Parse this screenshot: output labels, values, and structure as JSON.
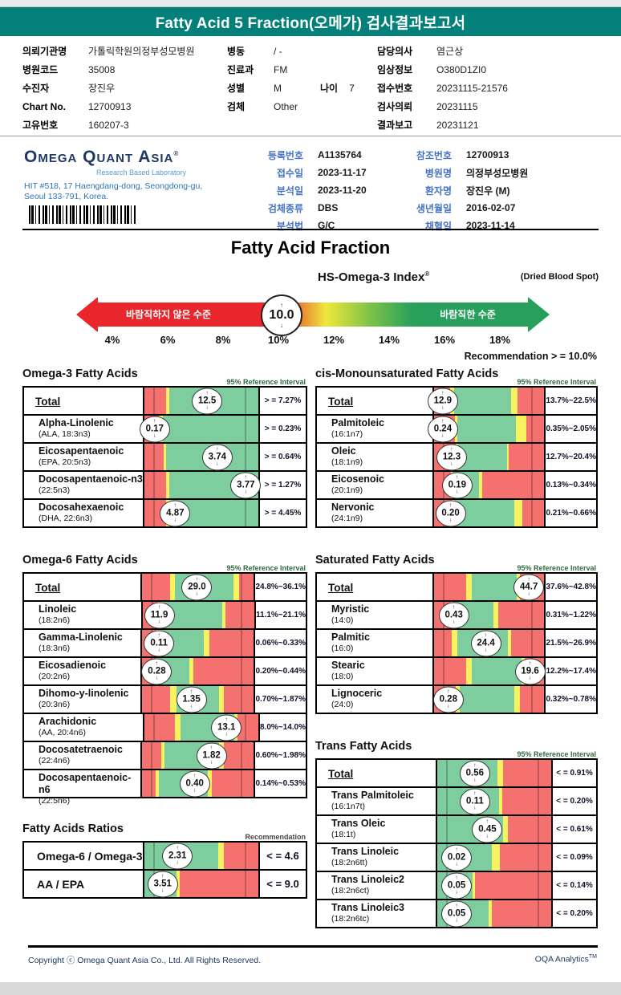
{
  "header": {
    "title": "Fatty Acid 5 Fraction(오메가) 검사결과보고서"
  },
  "colors": {
    "band_teal": "#028079",
    "navy": "#1f3864",
    "label_blue": "#4472c4",
    "address_blue": "#2e74b5",
    "bar_red": "#f4716f",
    "bar_yellow": "#f7f25e",
    "bar_green": "#7dcd9f",
    "arrow_red": "#e8262b",
    "arrow_green": "#28a05b",
    "ref_note_green": "#2e6b3e"
  },
  "patient": {
    "col1": [
      {
        "label": "의뢰기관명",
        "value": "가톨릭학원의정부성모병원"
      },
      {
        "label": "병원코드",
        "value": "35008"
      },
      {
        "label": "수진자",
        "value": "장진우"
      },
      {
        "label": "Chart No.",
        "value": "12700913"
      },
      {
        "label": "고유번호",
        "value": "160207-3"
      }
    ],
    "col2": [
      {
        "label": "병동",
        "value": "/ -"
      },
      {
        "label": "진료과",
        "value": "FM"
      },
      {
        "label": "성별",
        "value": "M",
        "label2": "나이",
        "value2": "7"
      },
      {
        "label": "검체",
        "value": "Other"
      }
    ],
    "col3": [
      {
        "label": "담당의사",
        "value": "염근상"
      },
      {
        "label": "임상정보",
        "value": "O380D1ZI0"
      },
      {
        "label": "접수번호",
        "value": "20231115-21576"
      },
      {
        "label": "검사의뢰",
        "value": "20231115"
      },
      {
        "label": "결과보고",
        "value": "20231121"
      }
    ]
  },
  "lab": {
    "logo": "Omega Quant Asia",
    "logo_sup": "®",
    "logo_sub": "Research Based Laboratory",
    "address_line1": "HIT #518, 17 Haengdang-dong, Seongdong-gu,",
    "address_line2": "Seoul 133-791, Korea.",
    "reg_left": [
      {
        "label": "등록번호",
        "value": "A1135764"
      },
      {
        "label": "접수일",
        "value": "2023-11-17"
      },
      {
        "label": "분석일",
        "value": "2023-11-20"
      },
      {
        "label": "검체종류",
        "value": "DBS"
      },
      {
        "label": "분석법",
        "value": "G/C"
      }
    ],
    "reg_right": [
      {
        "label": "참조번호",
        "value": "12700913"
      },
      {
        "label": "병원명",
        "value": "의정부성모병원"
      },
      {
        "label": "환자명",
        "value": "장진우 (M)"
      },
      {
        "label": "생년월일",
        "value": "2016-02-07"
      },
      {
        "label": "채혈일",
        "value": "2023-11-14"
      }
    ]
  },
  "gauge": {
    "section_title": "Fatty Acid Fraction",
    "index_title": "HS-Omega-3 Index",
    "index_sup": "®",
    "note": "(Dried Blood Spot)",
    "zone_bad": "바람직하지 않은 수준",
    "zone_good": "바람직한 수준",
    "value": "10.0",
    "ticks": [
      "4%",
      "6%",
      "8%",
      "10%",
      "12%",
      "14%",
      "16%",
      "18%"
    ],
    "recommendation": "Recommendation  > =  10.0%"
  },
  "tables": {
    "omega3": {
      "title": "Omega-3 Fatty Acids",
      "note": "95% Reference Interval",
      "rows": [
        {
          "name": "Total",
          "total": true,
          "value": "12.5",
          "ref": "> = 7.27%",
          "marker": 55,
          "segs": [
            [
              "r",
              19
            ],
            [
              "y",
              3
            ],
            [
              "g",
              78
            ]
          ]
        },
        {
          "name": "Alpha-Linolenic",
          "sub": "(ALA, 18:3n3)",
          "value": "0.17",
          "ref": "> = 0.23%",
          "marker": 9,
          "segs": [
            [
              "r",
              13
            ],
            [
              "y",
              3
            ],
            [
              "g",
              84
            ]
          ]
        },
        {
          "name": "Eicosapentaenoic",
          "sub": "(EPA, 20:5n3)",
          "value": "3.74",
          "ref": "> = 0.64%",
          "marker": 64,
          "segs": [
            [
              "r",
              17
            ],
            [
              "y",
              2
            ],
            [
              "g",
              81
            ]
          ]
        },
        {
          "name": "Docosapentaenoic-n3",
          "sub": "(22:5n3)",
          "value": "3.77",
          "ref": "> = 1.27%",
          "marker": 89,
          "segs": [
            [
              "r",
              19
            ],
            [
              "y",
              3
            ],
            [
              "g",
              78
            ]
          ]
        },
        {
          "name": "Docosahexaenoic",
          "sub": "(DHA, 22:6n3)",
          "value": "4.87",
          "ref": "> = 4.45%",
          "marker": 27,
          "segs": [
            [
              "r",
              19
            ],
            [
              "y",
              4
            ],
            [
              "g",
              77
            ]
          ]
        }
      ]
    },
    "cis": {
      "title": "cis-Monounsaturated Fatty Acids",
      "note": "95% Reference Interval",
      "rows": [
        {
          "name": "Total",
          "total": true,
          "value": "12.9",
          "ref": "13.7%~22.5%",
          "marker": 8,
          "segs": [
            [
              "r",
              15
            ],
            [
              "y",
              3
            ],
            [
              "g",
              52
            ],
            [
              "y",
              6
            ],
            [
              "r",
              24
            ]
          ]
        },
        {
          "name": "Palmitoleic",
          "sub": "(16:1n7)",
          "value": "0.24",
          "ref": "0.35%~2.05%",
          "marker": 8,
          "segs": [
            [
              "r",
              19
            ],
            [
              "y",
              2
            ],
            [
              "g",
              53
            ],
            [
              "y",
              10
            ],
            [
              "r",
              16
            ]
          ]
        },
        {
          "name": "Oleic",
          "sub": "(18:1n9)",
          "value": "12.3",
          "ref": "12.7%~20.4%",
          "marker": 16,
          "segs": [
            [
              "r",
              20
            ],
            [
              "y",
              2
            ],
            [
              "g",
              44
            ],
            [
              "y",
              2
            ],
            [
              "r",
              32
            ]
          ]
        },
        {
          "name": "Eicosenoic",
          "sub": "(20:1n9)",
          "value": "0.19",
          "ref": "0.13%~0.34%",
          "marker": 21,
          "segs": [
            [
              "r",
              15
            ],
            [
              "y",
              2
            ],
            [
              "g",
              24
            ],
            [
              "y",
              3
            ],
            [
              "r",
              56
            ]
          ]
        },
        {
          "name": "Nervonic",
          "sub": "(24:1n9)",
          "value": "0.20",
          "ref": "0.21%~0.66%",
          "marker": 15,
          "segs": [
            [
              "r",
              16
            ],
            [
              "y",
              2
            ],
            [
              "g",
              55
            ],
            [
              "y",
              7
            ],
            [
              "r",
              20
            ]
          ]
        }
      ]
    },
    "omega6": {
      "title": "Omega-6 Fatty Acids",
      "note": "95% Reference Interval",
      "rows": [
        {
          "name": "Total",
          "total": true,
          "value": "29.0",
          "ref": "24.8%~36.1%",
          "marker": 49,
          "segs": [
            [
              "r",
              25
            ],
            [
              "y",
              4
            ],
            [
              "g",
              53
            ],
            [
              "y",
              5
            ],
            [
              "r",
              13
            ]
          ]
        },
        {
          "name": "Linoleic",
          "sub": "(18:2n6)",
          "value": "11.9",
          "ref": "11.1%~21.1%",
          "marker": 15,
          "segs": [
            [
              "r",
              13
            ],
            [
              "y",
              6
            ],
            [
              "g",
              52
            ],
            [
              "y",
              3
            ],
            [
              "r",
              26
            ]
          ]
        },
        {
          "name": "Gamma-Linolenic",
          "sub": "(18:3n6)",
          "value": "0.11",
          "ref": "0.06%~0.33%",
          "marker": 15,
          "segs": [
            [
              "r",
              13
            ],
            [
              "y",
              3
            ],
            [
              "g",
              39
            ],
            [
              "y",
              5
            ],
            [
              "r",
              40
            ]
          ]
        },
        {
          "name": "Eicosadienoic",
          "sub": "(20:2n6)",
          "value": "0.28",
          "ref": "0.20%~0.44%",
          "marker": 13,
          "segs": [
            [
              "r",
              12
            ],
            [
              "y",
              2
            ],
            [
              "g",
              28
            ],
            [
              "y",
              4
            ],
            [
              "r",
              54
            ]
          ]
        },
        {
          "name": "Dihomo-y-linolenic",
          "sub": "(20:3n6)",
          "value": "1.35",
          "ref": "0.70%~1.87%",
          "marker": 44,
          "segs": [
            [
              "r",
              25
            ],
            [
              "y",
              6
            ],
            [
              "g",
              38
            ],
            [
              "y",
              4
            ],
            [
              "r",
              27
            ]
          ]
        },
        {
          "name": "Arachidonic",
          "sub": "(AA, 20:4n6)",
          "value": "13.1",
          "ref": "8.0%~14.0%",
          "marker": 72,
          "segs": [
            [
              "r",
              27
            ],
            [
              "y",
              5
            ],
            [
              "g",
              47
            ],
            [
              "y",
              3
            ],
            [
              "r",
              18
            ]
          ]
        },
        {
          "name": "Docosatetraenoic",
          "sub": "(22:4n6)",
          "value": "1.82",
          "ref": "0.60%~1.98%",
          "marker": 62,
          "segs": [
            [
              "r",
              17
            ],
            [
              "y",
              3
            ],
            [
              "g",
              49
            ],
            [
              "y",
              4
            ],
            [
              "r",
              27
            ]
          ]
        },
        {
          "name": "Docosapentaenoic-n6",
          "sub": "(22:5n6)",
          "value": "0.40",
          "ref": "0.14%~0.53%",
          "marker": 47,
          "segs": [
            [
              "r",
              12
            ],
            [
              "y",
              3
            ],
            [
              "g",
              44
            ],
            [
              "y",
              3
            ],
            [
              "r",
              38
            ]
          ]
        }
      ]
    },
    "saturated": {
      "title": "Saturated Fatty Acids",
      "note": "95% Reference Interval",
      "rows": [
        {
          "name": "Total",
          "total": true,
          "value": "44.7",
          "ref": "37.6%~42.8%",
          "marker": 86,
          "segs": [
            [
              "r",
              29
            ],
            [
              "y",
              5
            ],
            [
              "g",
              41
            ],
            [
              "y",
              3
            ],
            [
              "r",
              22
            ]
          ]
        },
        {
          "name": "Myristic",
          "sub": "(14:0)",
          "value": "0.43",
          "ref": "0.31%~1.22%",
          "marker": 18,
          "segs": [
            [
              "r",
              15
            ],
            [
              "y",
              2
            ],
            [
              "g",
              37
            ],
            [
              "y",
              4
            ],
            [
              "r",
              42
            ]
          ]
        },
        {
          "name": "Palmitic",
          "sub": "(16:0)",
          "value": "24.4",
          "ref": "21.5%~26.9%",
          "marker": 47,
          "segs": [
            [
              "r",
              16
            ],
            [
              "y",
              5
            ],
            [
              "g",
              46
            ],
            [
              "y",
              3
            ],
            [
              "r",
              30
            ]
          ]
        },
        {
          "name": "Stearic",
          "sub": "(18:0)",
          "value": "19.6",
          "ref": "12.2%~17.4%",
          "marker": 87,
          "segs": [
            [
              "r",
              29
            ],
            [
              "y",
              5
            ],
            [
              "g",
              45
            ],
            [
              "y",
              3
            ],
            [
              "r",
              18
            ]
          ]
        },
        {
          "name": "Lignoceric",
          "sub": "(24:0)",
          "value": "0.28",
          "ref": "0.32%~0.78%",
          "marker": 13,
          "segs": [
            [
              "r",
              20
            ],
            [
              "y",
              3
            ],
            [
              "g",
              50
            ],
            [
              "y",
              5
            ],
            [
              "r",
              22
            ]
          ]
        }
      ]
    },
    "ratios": {
      "title": "Fatty Acids Ratios",
      "note": "Recommendation",
      "rows": [
        {
          "name": "Omega-6 / Omega-3",
          "value": "2.31",
          "ref": "< =  4.6",
          "marker": 29,
          "segs": [
            [
              "g",
              65
            ],
            [
              "y",
              5
            ],
            [
              "r",
              30
            ]
          ]
        },
        {
          "name": "AA / EPA",
          "value": "3.51",
          "ref": "< =  9.0",
          "marker": 16,
          "segs": [
            [
              "g",
              28
            ],
            [
              "y",
              3
            ],
            [
              "r",
              69
            ]
          ]
        }
      ]
    },
    "trans": {
      "title": "Trans Fatty Acids",
      "note": "95% Reference Interval",
      "rows": [
        {
          "name": "Total",
          "total": true,
          "value": "0.56",
          "ref": "< = 0.91%",
          "marker": 33,
          "segs": [
            [
              "g",
              53
            ],
            [
              "y",
              5
            ],
            [
              "r",
              42
            ]
          ]
        },
        {
          "name": "Trans Palmitoleic",
          "sub": "(16:1n7t)",
          "value": "0.11",
          "ref": "< = 0.20%",
          "marker": 33,
          "segs": [
            [
              "g",
              54
            ],
            [
              "y",
              3
            ],
            [
              "r",
              43
            ]
          ]
        },
        {
          "name": "Trans Oleic",
          "sub": "(18:1t)",
          "value": "0.45",
          "ref": "< = 0.61%",
          "marker": 44,
          "segs": [
            [
              "g",
              58
            ],
            [
              "y",
              4
            ],
            [
              "r",
              38
            ]
          ]
        },
        {
          "name": "Trans Linoleic",
          "sub": "(18:2n6tt)",
          "value": "0.02",
          "ref": "< = 0.09%",
          "marker": 17,
          "segs": [
            [
              "g",
              48
            ],
            [
              "y",
              7
            ],
            [
              "r",
              45
            ]
          ]
        },
        {
          "name": "Trans Linoleic2",
          "sub": "(18:2n6ct)",
          "value": "0.05",
          "ref": "< = 0.14%",
          "marker": 17,
          "segs": [
            [
              "g",
              31
            ],
            [
              "y",
              2
            ],
            [
              "r",
              67
            ]
          ]
        },
        {
          "name": "Trans Linoleic3",
          "sub": "(18:2n6tc)",
          "value": "0.05",
          "ref": "< = 0.20%",
          "marker": 17,
          "segs": [
            [
              "g",
              45
            ],
            [
              "y",
              3
            ],
            [
              "r",
              52
            ]
          ]
        }
      ]
    }
  },
  "footer": {
    "left": "Copyright ⓒ Omega Quant Asia Co., Ltd.  All Rights Reserved.",
    "right": "OQA Analytics",
    "right_sup": "TM"
  }
}
